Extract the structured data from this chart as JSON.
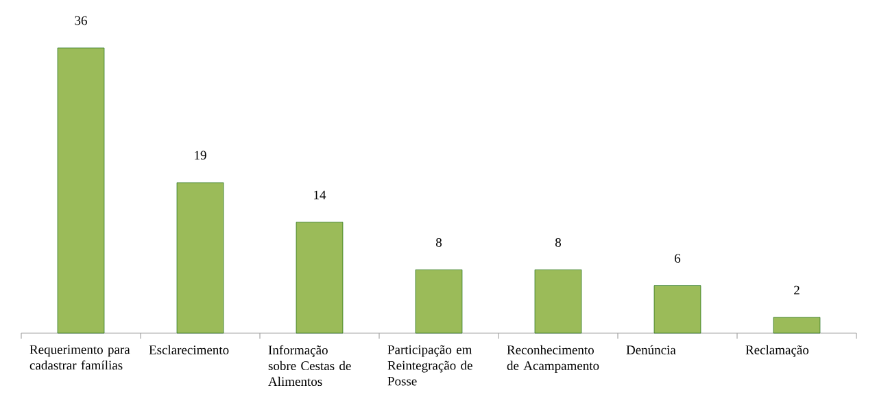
{
  "chart_data": {
    "type": "bar",
    "categories": [
      "Requerimento para cadastrar famílias",
      "Esclarecimento",
      "Informação sobre Cestas de Alimentos",
      "Participação em Reintegração de Posse",
      "Reconhecimento de Acampamento",
      "Denúncia",
      "Reclamação"
    ],
    "values": [
      36,
      19,
      14,
      8,
      8,
      6,
      2
    ],
    "color": "#9bbb59",
    "data_labels": true
  }
}
